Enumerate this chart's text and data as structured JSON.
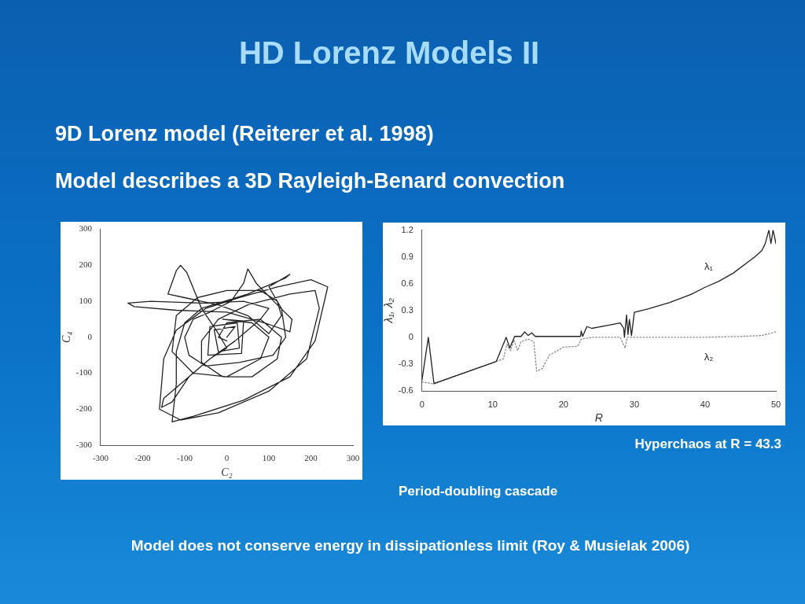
{
  "chart_data": [
    {
      "type": "other",
      "title": "HD Lorenz Models II",
      "annotations": [
        "9D Lorenz model (Reiterer et al. 1998)",
        "Model describes a 3D Rayleigh-Benard convection",
        "Model does not conserve energy in dissipationless limit (Roy & Musielak 2006)"
      ]
    },
    {
      "type": "line",
      "xlabel": "C₂",
      "ylabel": "C₄",
      "xlim": [
        -300,
        300
      ],
      "ylim": [
        -300,
        300
      ],
      "xticks": [
        -300,
        -200,
        -100,
        0,
        100,
        200,
        300
      ],
      "yticks": [
        -300,
        -200,
        -100,
        0,
        100,
        200,
        300
      ],
      "grid": false,
      "legend": false,
      "marker": "none",
      "line_style": "solid",
      "series": [
        {
          "color": "#222222",
          "x": [
            0,
            20,
            -30,
            -20,
            30,
            25,
            -40,
            -45,
            35,
            40,
            -10,
            60,
            100,
            80,
            0,
            -80,
            -130,
            -120,
            -70,
            0,
            80,
            120,
            130,
            100,
            50,
            -20,
            -100,
            -140,
            -120,
            -110,
            -95,
            -60,
            -20,
            0,
            -40,
            -110,
            -150,
            -155,
            -130,
            -90,
            -40,
            20,
            50,
            80,
            100,
            40,
            -60,
            -180,
            -235,
            -220,
            -120,
            0,
            90,
            150,
            155,
            120,
            70,
            50,
            40,
            10,
            -40,
            -80,
            -100,
            -90,
            -50,
            30,
            110,
            140,
            130,
            100,
            150,
            140,
            50,
            -60,
            -100,
            -120,
            -120,
            -130,
            -80,
            40,
            150,
            210,
            240,
            200,
            120,
            30,
            -50,
            -120,
            -150,
            -160,
            -110,
            -20,
            100,
            190,
            220,
            210,
            150,
            50,
            -20,
            -60,
            -60,
            -10,
            60,
            120,
            130,
            80,
            0,
            -20,
            0
          ],
          "values": [
            0,
            30,
            20,
            -40,
            -30,
            40,
            30,
            -50,
            -45,
            45,
            50,
            40,
            0,
            -60,
            -110,
            -100,
            -40,
            60,
            110,
            130,
            130,
            100,
            60,
            10,
            60,
            90,
            110,
            120,
            185,
            200,
            180,
            80,
            10,
            -30,
            -60,
            -130,
            -170,
            -195,
            -180,
            -110,
            -60,
            -10,
            20,
            50,
            80,
            100,
            95,
            100,
            95,
            85,
            75,
            70,
            40,
            15,
            50,
            90,
            150,
            190,
            150,
            100,
            70,
            50,
            0,
            -50,
            -80,
            -70,
            -50,
            0,
            80,
            140,
            175,
            165,
            120,
            80,
            40,
            -40,
            -130,
            -235,
            -220,
            -175,
            -110,
            -10,
            140,
            160,
            140,
            110,
            80,
            20,
            -60,
            -200,
            -230,
            -210,
            -150,
            -60,
            80,
            130,
            120,
            90,
            50,
            -10,
            -70,
            -110,
            -110,
            -60,
            0,
            50,
            40,
            0,
            -10
          ]
        }
      ]
    },
    {
      "type": "line",
      "xlabel": "R",
      "ylabel": "λ₁, λ₂",
      "xlim": [
        0,
        50
      ],
      "ylim": [
        -0.6,
        1.2
      ],
      "xticks": [
        0,
        10,
        20,
        30,
        40,
        50
      ],
      "yticks": [
        -0.6,
        -0.3,
        0,
        0.3,
        0.6,
        0.9,
        1.2
      ],
      "grid": false,
      "legend": false,
      "marker": "none",
      "series": [
        {
          "name": "λ₁",
          "color": "#222222",
          "line_style": "solid",
          "x": [
            0,
            0.9,
            1.7,
            10.5,
            11.9,
            12.4,
            13.1,
            14,
            14.5,
            15,
            15.5,
            16,
            22.4,
            22.5,
            22.7,
            23.3,
            24,
            26,
            28,
            28.5,
            28.6,
            28.9,
            29.1,
            29.3,
            29.6,
            30,
            32,
            35,
            38,
            40,
            42,
            44,
            46,
            47,
            48,
            48.5,
            49,
            49.3,
            49.6,
            50
          ],
          "values": [
            -0.48,
            0,
            -0.52,
            -0.27,
            0,
            -0.12,
            0.01,
            0.01,
            0.06,
            0.02,
            0.05,
            0.01,
            0.01,
            0.07,
            0.01,
            0.12,
            0.1,
            0.13,
            0.16,
            0.1,
            0,
            0.25,
            0.03,
            0.2,
            0.02,
            0.28,
            0.32,
            0.39,
            0.48,
            0.56,
            0.63,
            0.72,
            0.84,
            0.9,
            0.97,
            1.05,
            1.2,
            1.05,
            1.2,
            1.05
          ]
        },
        {
          "name": "λ₂",
          "color": "#888888",
          "line_style": "dotted",
          "x": [
            0,
            1.5,
            10.5,
            11.5,
            12,
            12.5,
            13,
            13.5,
            14,
            15,
            15.8,
            16.2,
            17,
            18,
            20,
            22,
            22.5,
            24,
            28,
            28.7,
            29,
            35,
            40,
            45,
            48,
            50
          ],
          "values": [
            -0.5,
            -0.52,
            -0.27,
            -0.24,
            -0.08,
            -0.15,
            -0.03,
            -0.15,
            -0.05,
            -0.02,
            -0.05,
            -0.38,
            -0.35,
            -0.2,
            -0.11,
            -0.1,
            -0.02,
            0,
            0,
            -0.12,
            0,
            0,
            0,
            0.01,
            0.02,
            0.06
          ]
        }
      ],
      "annotations": [
        "Hyperchaos at R = 43.3",
        "Period-doubling cascade"
      ]
    }
  ]
}
